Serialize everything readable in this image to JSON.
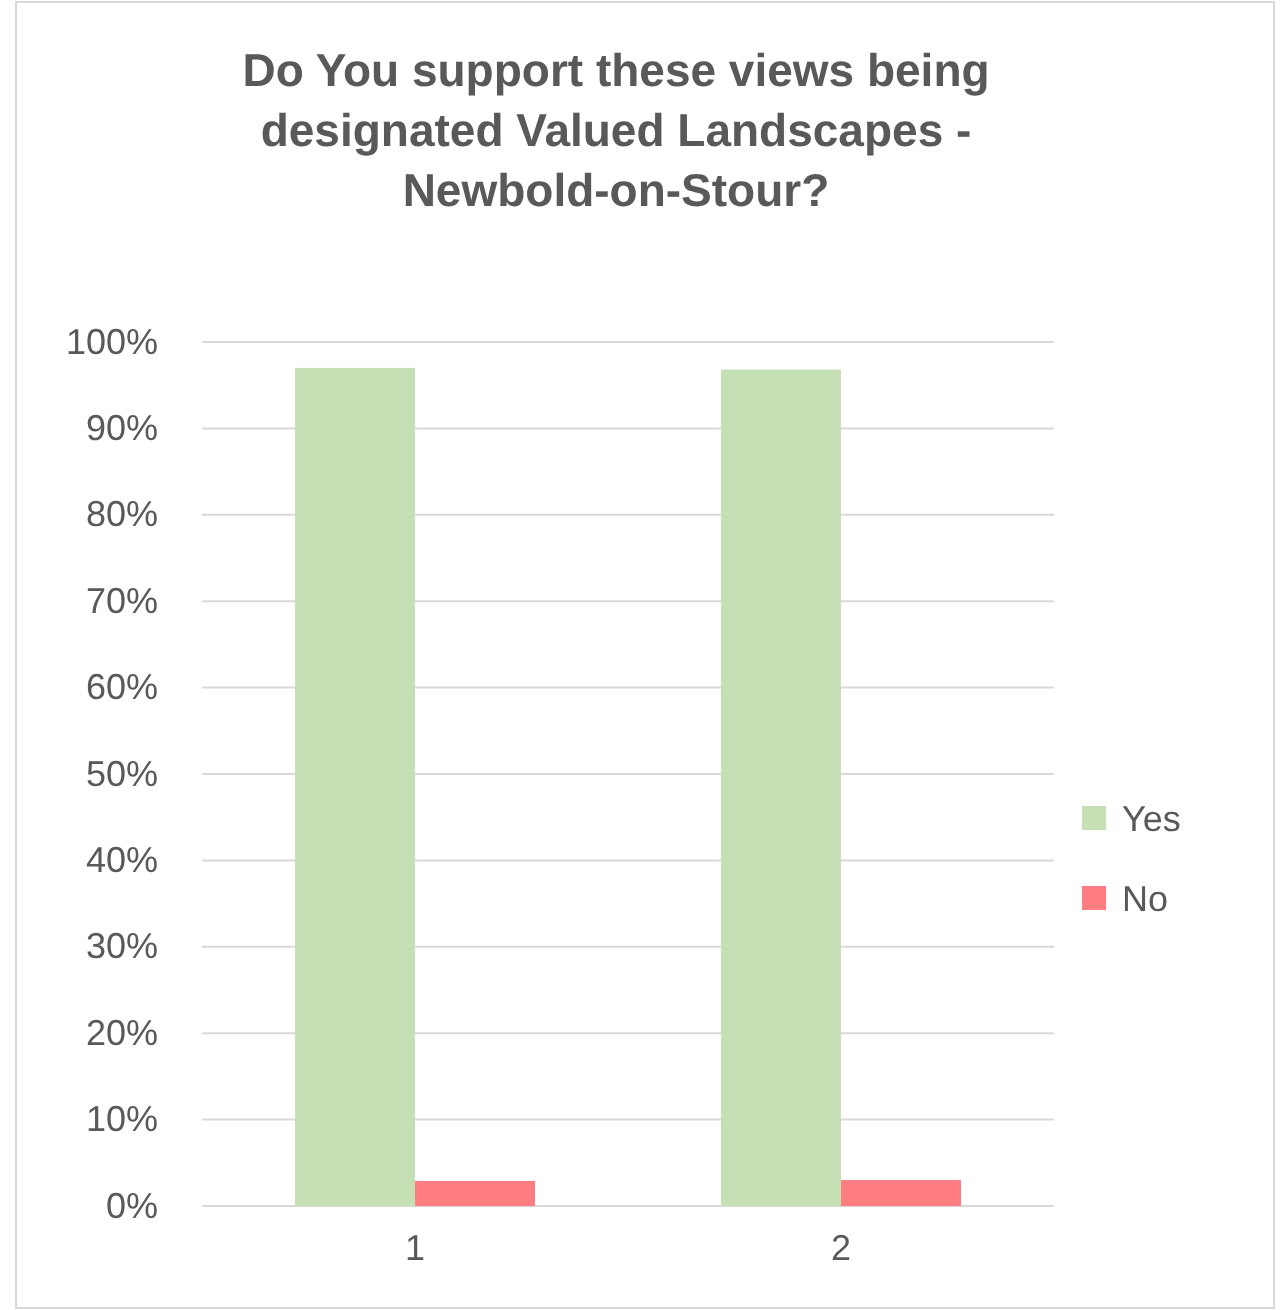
{
  "chart_data": {
    "type": "bar",
    "title": "Do You support these views being designated Valued Landscapes - Newbold-on-Stour?",
    "categories": [
      "1",
      "2"
    ],
    "series": [
      {
        "name": "Yes",
        "color": "#c5e0b4",
        "values": [
          97,
          96.8
        ]
      },
      {
        "name": "No",
        "color": "#ff7c80",
        "values": [
          2.9,
          3
        ]
      }
    ],
    "ylim": [
      0,
      100
    ],
    "yticks": [
      {
        "value": 0,
        "label": "0%"
      },
      {
        "value": 10,
        "label": "10%"
      },
      {
        "value": 20,
        "label": "20%"
      },
      {
        "value": 30,
        "label": "30%"
      },
      {
        "value": 40,
        "label": "40%"
      },
      {
        "value": 50,
        "label": "50%"
      },
      {
        "value": 60,
        "label": "60%"
      },
      {
        "value": 70,
        "label": "70%"
      },
      {
        "value": 80,
        "label": "80%"
      },
      {
        "value": 90,
        "label": "90%"
      },
      {
        "value": 100,
        "label": "100%"
      }
    ],
    "grid": "y",
    "legend": "right"
  }
}
